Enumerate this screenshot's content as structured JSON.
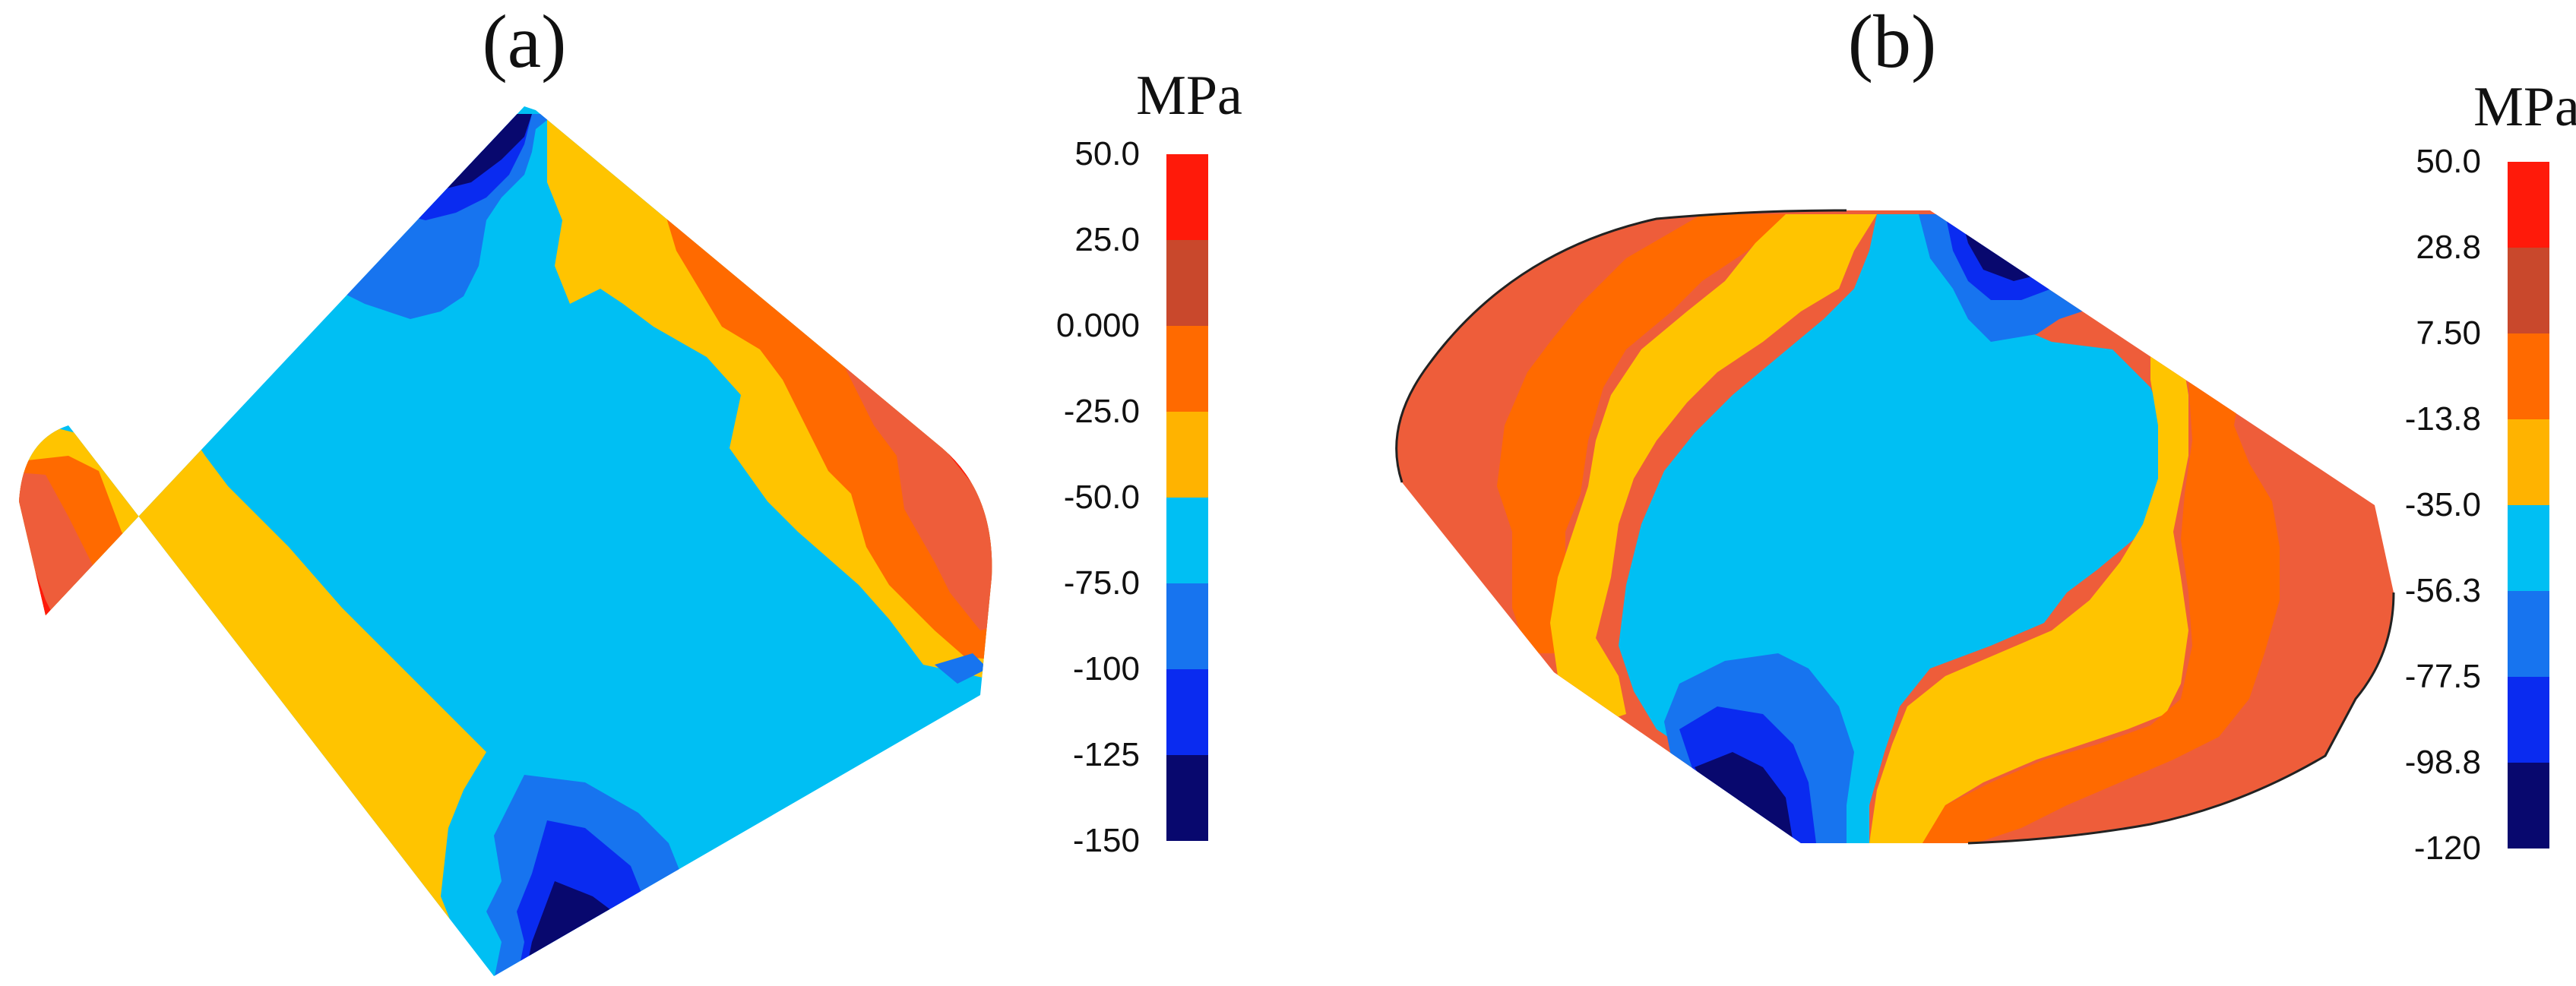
{
  "panels": [
    {
      "label": "(a)",
      "unit": "MPa",
      "levels": [
        "50.0",
        "25.0",
        "0.000",
        "-25.0",
        "-50.0",
        "-75.0",
        "-100",
        "-125",
        "-150"
      ]
    },
    {
      "label": "(b)",
      "unit": "MPa",
      "levels": [
        "50.0",
        "28.8",
        "7.50",
        "-13.8",
        "-35.0",
        "-56.3",
        "-77.5",
        "-98.8",
        "-120"
      ]
    }
  ],
  "colors": {
    "red": "#ff1a0a",
    "brick": "#c9482c",
    "coral": "#ee5d3a",
    "orange": "#ff6a00",
    "amber": "#ffb300",
    "yellow": "#ffc400",
    "cyan": "#00bff3",
    "blue": "#1774ef",
    "brightblue": "#0a2bf0",
    "navy": "#08086e"
  }
}
